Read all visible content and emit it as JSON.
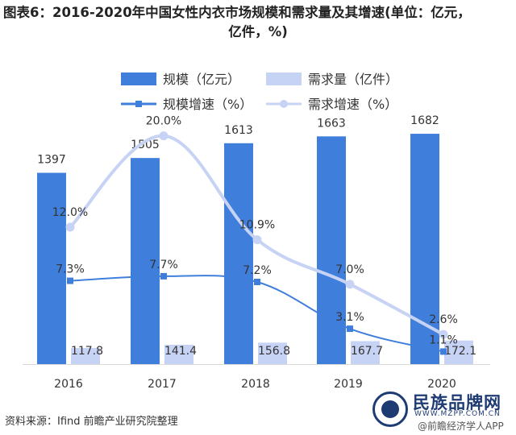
{
  "title_line1": "图表6：2016-2020年中国女性内衣市场规模和需求量及其增速(单位：亿元，",
  "title_line2": "亿件，%)",
  "source": "资料来源：Ifind 前瞻产业研究院整理",
  "logo": {
    "brand": "民族品牌网",
    "site": "WWW.MZPP.COM.CN",
    "app": "@前瞻经济学人APP"
  },
  "colors": {
    "bar_scale": "#3f7fdb",
    "bar_demand": "#c7d3f4",
    "line_scale": "#3f7fdb",
    "line_demand": "#c7d3f4",
    "axis": "#d9d9d9"
  },
  "chart_data": {
    "type": "bar",
    "categories": [
      "2016",
      "2017",
      "2018",
      "2019",
      "2020"
    ],
    "series": [
      {
        "name": "规模（亿元）",
        "kind": "bar",
        "axis": "left",
        "values": [
          1397,
          1505,
          1613,
          1663,
          1682
        ]
      },
      {
        "name": "需求量（亿件）",
        "kind": "bar",
        "axis": "left",
        "values": [
          117.8,
          141.4,
          156.8,
          167.7,
          172.1
        ]
      },
      {
        "name": "规模增速（%）",
        "kind": "line",
        "axis": "right",
        "values": [
          7.3,
          7.7,
          7.2,
          3.1,
          1.1
        ]
      },
      {
        "name": "需求增速（%）",
        "kind": "line",
        "axis": "right",
        "smooth": true,
        "values": [
          12.0,
          20.0,
          10.9,
          7.0,
          2.6
        ]
      }
    ],
    "bar_labels": [
      [
        "1397",
        "1505",
        "1613",
        "1663",
        "1682"
      ],
      [
        "117.8",
        "141.4",
        "156.8",
        "167.7",
        "172.1"
      ]
    ],
    "line_labels": [
      [
        "7.3%",
        "7.7%",
        "7.2%",
        "3.1%",
        "1.1%"
      ],
      [
        "12.0%",
        "20.0%",
        "10.9%",
        "7.0%",
        "2.6%"
      ]
    ],
    "left_axis_range": [
      0,
      2000
    ],
    "right_axis_range": [
      0,
      24
    ],
    "legend_position": "top",
    "grid": false
  }
}
